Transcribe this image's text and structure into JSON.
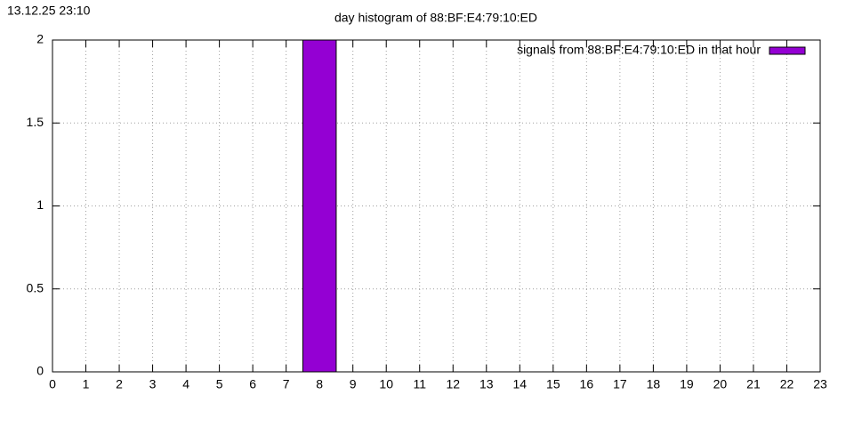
{
  "chart_data": {
    "type": "bar",
    "title": "day histogram of 88:BF:E4:79:10:ED",
    "timestamp": "13.12.25 23:10",
    "x": [
      0,
      1,
      2,
      3,
      4,
      5,
      6,
      7,
      8,
      9,
      10,
      11,
      12,
      13,
      14,
      15,
      16,
      17,
      18,
      19,
      20,
      21,
      22,
      23
    ],
    "series": [
      {
        "name": "signals from 88:BF:E4:79:10:ED in that hour",
        "color": "#9400d3",
        "values": [
          0,
          0,
          0,
          0,
          0,
          0,
          0,
          0,
          2,
          0,
          0,
          0,
          0,
          0,
          0,
          0,
          0,
          0,
          0,
          0,
          0,
          0,
          0,
          0
        ]
      }
    ],
    "xlim": [
      0,
      23
    ],
    "xticks": [
      0,
      1,
      2,
      3,
      4,
      5,
      6,
      7,
      8,
      9,
      10,
      11,
      12,
      13,
      14,
      15,
      16,
      17,
      18,
      19,
      20,
      21,
      22,
      23
    ],
    "ylim": [
      0,
      2
    ],
    "yticks": [
      0,
      0.5,
      1,
      1.5,
      2
    ],
    "grid": true,
    "legend": "top-right"
  }
}
